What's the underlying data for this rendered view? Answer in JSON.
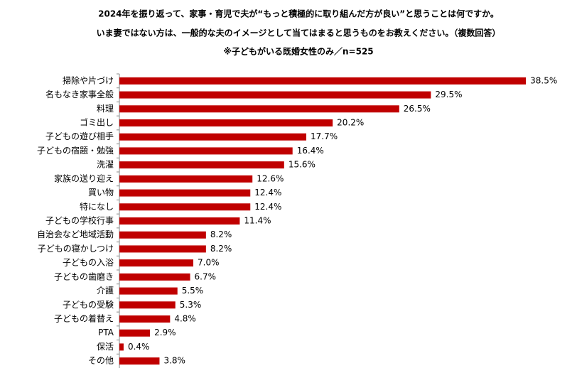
{
  "chart_data": {
    "type": "bar",
    "orientation": "horizontal",
    "title": "2024年を振り返って、家事・育児で夫が“もっと積極的に取り組んだ方が良い”と思うことは何ですか。",
    "subtitle": "いま妻ではない方は、一般的な夫のイメージとして当てはまると思うものをお教えください。（複数回答）",
    "note": "※子どもがいる既婚女性のみ／n=525",
    "categories": [
      "掃除や片づけ",
      "名もなき家事全般",
      "料理",
      "ゴミ出し",
      "子どもの遊び相手",
      "子どもの宿題・勉強",
      "洗濯",
      "家族の送り迎え",
      "買い物",
      "特になし",
      "子どもの学校行事",
      "自治会など地域活動",
      "子どもの寝かしつけ",
      "子どもの入浴",
      "子どもの歯磨き",
      "介護",
      "子どもの受験",
      "子どもの着替え",
      "PTA",
      "保活",
      "その他"
    ],
    "values": [
      38.5,
      29.5,
      26.5,
      20.2,
      17.7,
      16.4,
      15.6,
      12.6,
      12.4,
      12.4,
      11.4,
      8.2,
      8.2,
      7.0,
      6.7,
      5.5,
      5.3,
      4.8,
      2.9,
      0.4,
      3.8
    ],
    "value_labels": [
      "38.5%",
      "29.5%",
      "26.5%",
      "20.2%",
      "17.7%",
      "16.4%",
      "15.6%",
      "12.6%",
      "12.4%",
      "12.4%",
      "11.4%",
      "8.2%",
      "8.2%",
      "7.0%",
      "6.7%",
      "5.5%",
      "5.3%",
      "4.8%",
      "2.9%",
      "0.4%",
      "3.8%"
    ],
    "color": "#c00000"
  }
}
